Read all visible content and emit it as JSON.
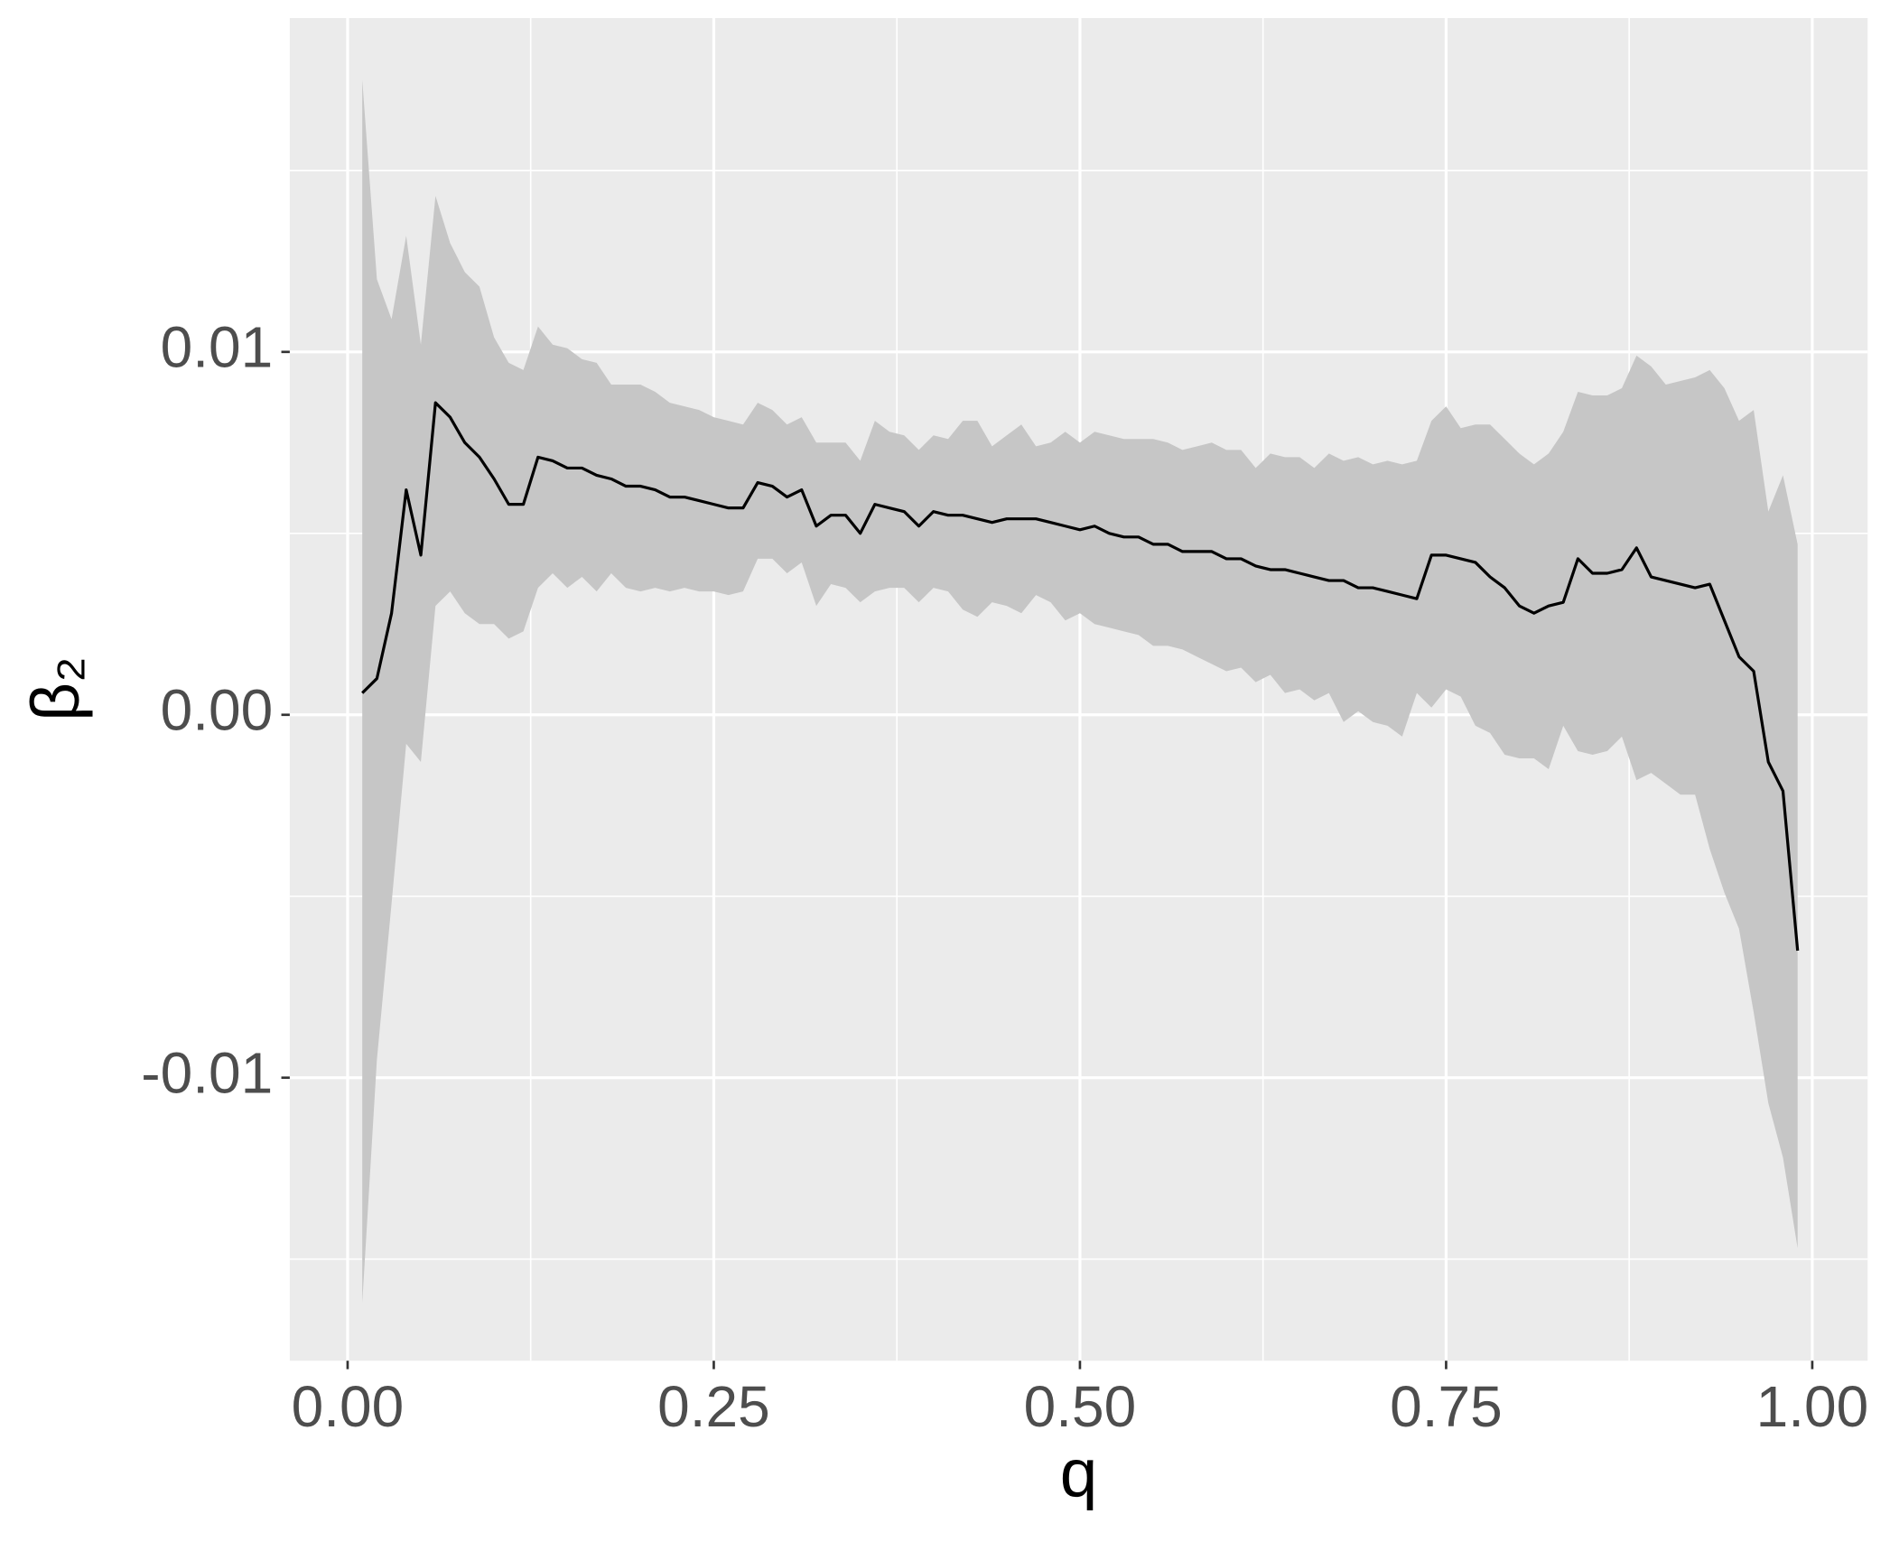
{
  "chart_data": {
    "type": "line-ribbon",
    "x_label": "q",
    "y_label": "β₂",
    "x": [
      0.01,
      0.02,
      0.03,
      0.04,
      0.05,
      0.06,
      0.07,
      0.08,
      0.09,
      0.1,
      0.11,
      0.12,
      0.13,
      0.14,
      0.15,
      0.16,
      0.17,
      0.18,
      0.19,
      0.2,
      0.21,
      0.22,
      0.23,
      0.24,
      0.25,
      0.26,
      0.27,
      0.28,
      0.29,
      0.3,
      0.31,
      0.32,
      0.33,
      0.34,
      0.35,
      0.36,
      0.37,
      0.38,
      0.39,
      0.4,
      0.41,
      0.42,
      0.43,
      0.44,
      0.45,
      0.46,
      0.47,
      0.48,
      0.49,
      0.5,
      0.51,
      0.52,
      0.53,
      0.54,
      0.55,
      0.56,
      0.57,
      0.58,
      0.59,
      0.6,
      0.61,
      0.62,
      0.63,
      0.64,
      0.65,
      0.66,
      0.67,
      0.68,
      0.69,
      0.7,
      0.71,
      0.72,
      0.73,
      0.74,
      0.75,
      0.76,
      0.77,
      0.78,
      0.79,
      0.8,
      0.81,
      0.82,
      0.83,
      0.84,
      0.85,
      0.86,
      0.87,
      0.88,
      0.89,
      0.9,
      0.91,
      0.92,
      0.93,
      0.94,
      0.95,
      0.96,
      0.97,
      0.98,
      0.99
    ],
    "line": {
      "color": "#000000",
      "values": [
        0.0006,
        0.001,
        0.0028,
        0.0062,
        0.0044,
        0.0086,
        0.0082,
        0.0075,
        0.0071,
        0.0065,
        0.0058,
        0.0058,
        0.0071,
        0.007,
        0.0068,
        0.0068,
        0.0066,
        0.0065,
        0.0063,
        0.0063,
        0.0062,
        0.006,
        0.006,
        0.0059,
        0.0058,
        0.0057,
        0.0057,
        0.0064,
        0.0063,
        0.006,
        0.0062,
        0.0052,
        0.0055,
        0.0055,
        0.005,
        0.0058,
        0.0057,
        0.0056,
        0.0052,
        0.0056,
        0.0055,
        0.0055,
        0.0054,
        0.0053,
        0.0054,
        0.0054,
        0.0054,
        0.0053,
        0.0052,
        0.0051,
        0.0052,
        0.005,
        0.0049,
        0.0049,
        0.0047,
        0.0047,
        0.0045,
        0.0045,
        0.0045,
        0.0043,
        0.0043,
        0.0041,
        0.004,
        0.004,
        0.0039,
        0.0038,
        0.0037,
        0.0037,
        0.0035,
        0.0035,
        0.0034,
        0.0033,
        0.0032,
        0.0044,
        0.0044,
        0.0043,
        0.0042,
        0.0038,
        0.0035,
        0.003,
        0.0028,
        0.003,
        0.0031,
        0.0043,
        0.0039,
        0.0039,
        0.004,
        0.0046,
        0.0038,
        0.0037,
        0.0036,
        0.0035,
        0.0036,
        0.0026,
        0.0016,
        0.0012,
        -0.0013,
        -0.0021,
        -0.0065
      ]
    },
    "ribbon": {
      "color": "#C6C6C6",
      "upper": [
        0.0175,
        0.012,
        0.0109,
        0.0132,
        0.0102,
        0.0143,
        0.013,
        0.0122,
        0.0118,
        0.0104,
        0.0097,
        0.0095,
        0.0107,
        0.0102,
        0.0101,
        0.0098,
        0.0097,
        0.0091,
        0.0091,
        0.0091,
        0.0089,
        0.0086,
        0.0085,
        0.0084,
        0.0082,
        0.0081,
        0.008,
        0.0086,
        0.0084,
        0.008,
        0.0082,
        0.0075,
        0.0075,
        0.0075,
        0.007,
        0.0081,
        0.0078,
        0.0077,
        0.0073,
        0.0077,
        0.0076,
        0.0081,
        0.0081,
        0.0074,
        0.0077,
        0.008,
        0.0074,
        0.0075,
        0.0078,
        0.0075,
        0.0078,
        0.0077,
        0.0076,
        0.0076,
        0.0076,
        0.0075,
        0.0073,
        0.0074,
        0.0075,
        0.0073,
        0.0073,
        0.0068,
        0.0072,
        0.0071,
        0.0071,
        0.0068,
        0.0072,
        0.007,
        0.0071,
        0.0069,
        0.007,
        0.0069,
        0.007,
        0.0081,
        0.0085,
        0.0079,
        0.008,
        0.008,
        0.0076,
        0.0072,
        0.0069,
        0.0072,
        0.0078,
        0.0089,
        0.0088,
        0.0088,
        0.009,
        0.0099,
        0.0096,
        0.0091,
        0.0092,
        0.0093,
        0.0095,
        0.009,
        0.0081,
        0.0084,
        0.0056,
        0.0066,
        0.0047
      ],
      "lower": [
        -0.0162,
        -0.0095,
        -0.0052,
        -0.0008,
        -0.0013,
        0.003,
        0.0034,
        0.0028,
        0.0025,
        0.0025,
        0.0021,
        0.0023,
        0.0035,
        0.0039,
        0.0035,
        0.0038,
        0.0034,
        0.0039,
        0.0035,
        0.0034,
        0.0035,
        0.0034,
        0.0035,
        0.0034,
        0.0034,
        0.0033,
        0.0034,
        0.0043,
        0.0043,
        0.0039,
        0.0042,
        0.003,
        0.0036,
        0.0035,
        0.0031,
        0.0034,
        0.0035,
        0.0035,
        0.0031,
        0.0035,
        0.0034,
        0.0029,
        0.0027,
        0.0031,
        0.003,
        0.0028,
        0.0033,
        0.0031,
        0.0026,
        0.0028,
        0.0025,
        0.0024,
        0.0023,
        0.0022,
        0.0019,
        0.0019,
        0.0018,
        0.0016,
        0.0014,
        0.0012,
        0.0013,
        0.0009,
        0.0011,
        0.0006,
        0.0007,
        0.0004,
        0.0006,
        -0.0002,
        0.0001,
        -0.0002,
        -0.0003,
        -0.0006,
        0.0006,
        0.0002,
        0.0007,
        0.0005,
        -0.0003,
        -0.0005,
        -0.0011,
        -0.0012,
        -0.0012,
        -0.0015,
        -0.0003,
        -0.001,
        -0.0011,
        -0.001,
        -0.0006,
        -0.0018,
        -0.0016,
        -0.0019,
        -0.0022,
        -0.0022,
        -0.0037,
        -0.0049,
        -0.0059,
        -0.0082,
        -0.0107,
        -0.0122,
        -0.0147
      ]
    },
    "xlim": [
      -0.0395,
      1.0378
    ],
    "ylim": [
      -0.0178,
      0.0192
    ],
    "xticks": [
      {
        "value": 0,
        "label": "0.00"
      },
      0.25,
      {
        "value": 0.5,
        "label": "0.50"
      },
      0.75,
      {
        "value": 1,
        "label": "1.00"
      }
    ],
    "yticks": [
      -0.01,
      {
        "value": 0,
        "label": "0.00"
      },
      0.01
    ],
    "x_minor_grid": [
      0.125,
      0.375,
      0.625,
      0.875
    ],
    "y_minor_grid": [
      -0.015,
      -0.005,
      0.005,
      0.015
    ],
    "grid": true,
    "panel_color": "#EBEBEB"
  }
}
